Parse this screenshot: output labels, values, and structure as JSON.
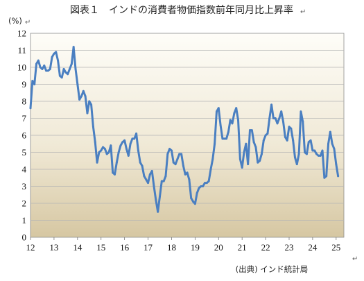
{
  "chart_data": {
    "type": "line",
    "title": "図表１　インドの消費者物価指数前年同月比上昇率",
    "ylabel": "(%)",
    "xlabel": "",
    "source": "(出典) インド統計局",
    "ylim": [
      0,
      12
    ],
    "xlim": [
      2012.0,
      2025.33
    ],
    "y_ticks": [
      "0",
      "1",
      "2",
      "3",
      "4",
      "5",
      "6",
      "7",
      "8",
      "9",
      "10",
      "11",
      "12"
    ],
    "x_ticks": [
      {
        "label": "12",
        "value": 2012
      },
      {
        "label": "13",
        "value": 2013
      },
      {
        "label": "14",
        "value": 2014
      },
      {
        "label": "15",
        "value": 2015
      },
      {
        "label": "16",
        "value": 2016
      },
      {
        "label": "17",
        "value": 2017
      },
      {
        "label": "18",
        "value": 2018
      },
      {
        "label": "19",
        "value": 2019
      },
      {
        "label": "20",
        "value": 2020
      },
      {
        "label": "21",
        "value": 2021
      },
      {
        "label": "22",
        "value": 2022
      },
      {
        "label": "23",
        "value": 2023
      },
      {
        "label": "24",
        "value": 2024
      },
      {
        "label": "25",
        "value": 2025
      }
    ],
    "grid": true,
    "series": [
      {
        "name": "",
        "color": "#4a7fc1",
        "x": [
          2012.0,
          2012.083,
          2012.167,
          2012.25,
          2012.333,
          2012.417,
          2012.5,
          2012.583,
          2012.667,
          2012.75,
          2012.833,
          2012.917,
          2013.0,
          2013.083,
          2013.167,
          2013.25,
          2013.333,
          2013.417,
          2013.5,
          2013.583,
          2013.667,
          2013.75,
          2013.833,
          2013.917,
          2014.0,
          2014.083,
          2014.167,
          2014.25,
          2014.333,
          2014.417,
          2014.5,
          2014.583,
          2014.667,
          2014.75,
          2014.833,
          2014.917,
          2015.0,
          2015.083,
          2015.167,
          2015.25,
          2015.333,
          2015.417,
          2015.5,
          2015.583,
          2015.667,
          2015.75,
          2015.833,
          2015.917,
          2016.0,
          2016.083,
          2016.167,
          2016.25,
          2016.333,
          2016.417,
          2016.5,
          2016.583,
          2016.667,
          2016.75,
          2016.833,
          2016.917,
          2017.0,
          2017.083,
          2017.167,
          2017.25,
          2017.333,
          2017.417,
          2017.5,
          2017.583,
          2017.667,
          2017.75,
          2017.833,
          2017.917,
          2018.0,
          2018.083,
          2018.167,
          2018.25,
          2018.333,
          2018.417,
          2018.5,
          2018.583,
          2018.667,
          2018.75,
          2018.833,
          2018.917,
          2019.0,
          2019.083,
          2019.167,
          2019.25,
          2019.333,
          2019.417,
          2019.5,
          2019.583,
          2019.667,
          2019.75,
          2019.833,
          2019.917,
          2020.0,
          2020.083,
          2020.167,
          2020.25,
          2020.333,
          2020.417,
          2020.5,
          2020.583,
          2020.667,
          2020.75,
          2020.833,
          2020.917,
          2021.0,
          2021.083,
          2021.167,
          2021.25,
          2021.333,
          2021.417,
          2021.5,
          2021.583,
          2021.667,
          2021.75,
          2021.833,
          2021.917,
          2022.0,
          2022.083,
          2022.167,
          2022.25,
          2022.333,
          2022.417,
          2022.5,
          2022.583,
          2022.667,
          2022.75,
          2022.833,
          2022.917,
          2023.0,
          2023.083,
          2023.167,
          2023.25,
          2023.333,
          2023.417,
          2023.5,
          2023.583,
          2023.667,
          2023.75,
          2023.833,
          2023.917,
          2024.0,
          2024.083,
          2024.167,
          2024.25,
          2024.333,
          2024.417,
          2024.5,
          2024.583,
          2024.667,
          2024.75,
          2024.833,
          2024.917,
          2025.0,
          2025.083
        ],
        "values": [
          7.6,
          9.2,
          9.0,
          10.2,
          10.4,
          10.0,
          9.9,
          10.1,
          9.8,
          9.8,
          9.9,
          10.6,
          10.8,
          10.9,
          10.4,
          9.5,
          9.4,
          9.9,
          9.7,
          9.6,
          9.9,
          10.2,
          11.2,
          9.9,
          9.0,
          8.1,
          8.3,
          8.6,
          8.3,
          7.3,
          8.0,
          7.8,
          6.5,
          5.6,
          4.4,
          5.0,
          5.1,
          5.3,
          5.2,
          4.9,
          5.0,
          5.4,
          3.8,
          3.7,
          4.4,
          5.0,
          5.4,
          5.6,
          5.7,
          5.2,
          4.8,
          5.5,
          5.8,
          5.8,
          6.1,
          5.1,
          4.4,
          4.2,
          3.6,
          3.4,
          3.2,
          3.7,
          3.9,
          3.0,
          2.2,
          1.5,
          2.4,
          3.3,
          3.3,
          3.6,
          4.9,
          5.2,
          5.1,
          4.4,
          4.3,
          4.6,
          4.9,
          4.9,
          4.2,
          3.7,
          3.8,
          3.4,
          2.3,
          2.1,
          1.97,
          2.6,
          2.9,
          3.0,
          3.0,
          3.2,
          3.2,
          3.3,
          4.0,
          4.6,
          5.5,
          7.4,
          7.6,
          6.6,
          5.8,
          5.8,
          5.8,
          6.2,
          6.9,
          6.7,
          7.3,
          7.6,
          6.9,
          4.6,
          4.1,
          5.0,
          5.5,
          4.3,
          6.3,
          6.3,
          5.6,
          5.3,
          4.4,
          4.5,
          4.9,
          5.7,
          6.0,
          6.1,
          7.0,
          7.8,
          7.0,
          7.0,
          6.7,
          7.0,
          7.4,
          6.8,
          5.9,
          5.7,
          6.5,
          6.4,
          5.7,
          4.7,
          4.3,
          4.9,
          7.4,
          6.8,
          5.0,
          4.9,
          5.6,
          5.7,
          5.1,
          5.1,
          4.9,
          4.8,
          4.8,
          5.1,
          3.5,
          3.6,
          5.5,
          6.2,
          5.5,
          5.2,
          4.3,
          3.6
        ]
      }
    ]
  }
}
